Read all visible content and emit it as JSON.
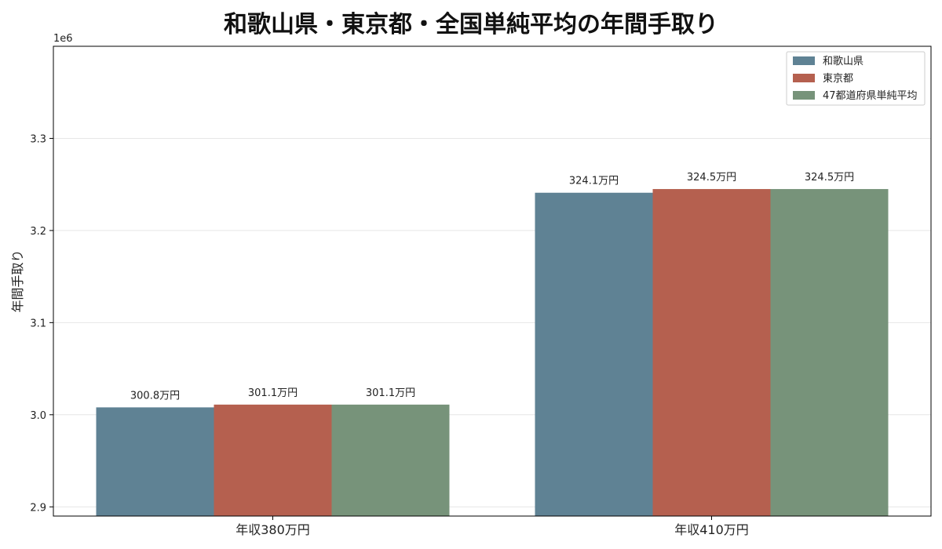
{
  "chart_data": {
    "type": "bar",
    "title": "和歌山県・東京都・全国単純平均の年間手取り",
    "xlabel": "",
    "ylabel": "年間手取り",
    "y_offset_label": "1e6",
    "categories": [
      "年収380万円",
      "年収410万円"
    ],
    "series": [
      {
        "name": "和歌山県",
        "color": "#5f8294",
        "values": [
          3008000,
          3241000
        ],
        "labels": [
          "300.8万円",
          "324.1万円"
        ]
      },
      {
        "name": "東京都",
        "color": "#b5604f",
        "values": [
          3011000,
          3245000
        ],
        "labels": [
          "301.1万円",
          "324.5万円"
        ]
      },
      {
        "name": "47都道府県単純平均",
        "color": "#77937a",
        "values": [
          3011000,
          3245000
        ],
        "labels": [
          "301.1万円",
          "324.5万円"
        ]
      }
    ],
    "ylim": [
      2890000,
      3400000
    ],
    "yticks": [
      2900000,
      3000000,
      3100000,
      3200000,
      3300000
    ],
    "ytick_labels": [
      "2.9",
      "3.0",
      "3.1",
      "3.2",
      "3.3"
    ],
    "grid": true,
    "legend_position": "top-right"
  }
}
